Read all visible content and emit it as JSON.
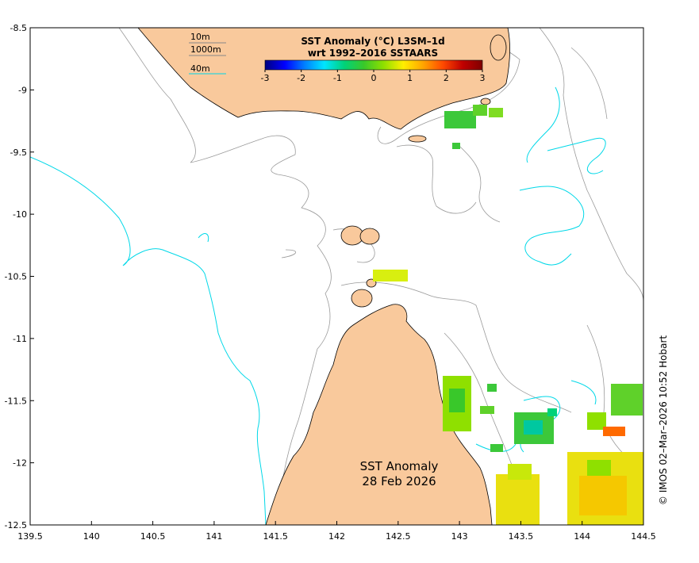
{
  "map": {
    "title_line1": "SST Anomaly",
    "title_line2": "28 Feb 2026",
    "credit": "© IMOS 02–Mar–2026 10:52 Hobart",
    "land_color": "#f9c99c",
    "ocean_color": "#ffffff",
    "contour_colors": {
      "10m": "#888888",
      "1000m": "#888888",
      "40m": "#00d8e8"
    }
  },
  "axes": {
    "x_ticks": [
      "139.5",
      "140",
      "140.5",
      "141",
      "141.5",
      "142",
      "142.5",
      "143",
      "143.5",
      "144",
      "144.5"
    ],
    "y_ticks": [
      "-8.5",
      "-9",
      "-9.5",
      "-10",
      "-10.5",
      "-11",
      "-11.5",
      "-12",
      "-12.5"
    ],
    "xlim": [
      139.5,
      144.5
    ],
    "ylim": [
      -12.5,
      -8.5
    ]
  },
  "legend": {
    "items": [
      {
        "label": "10m",
        "color": "#888888"
      },
      {
        "label": "1000m",
        "color": "#888888"
      },
      {
        "label": "40m",
        "color": "#00d8e8"
      }
    ]
  },
  "colorbar": {
    "title_line1": "SST Anomaly (°C) L3SM–1d",
    "title_line2": "wrt 1992–2016 SSTAARS",
    "ticks": [
      "-3",
      "-2",
      "-1",
      "0",
      "1",
      "2",
      "3"
    ],
    "range": [
      -3,
      3
    ],
    "colors": [
      "#00007f",
      "#0000ff",
      "#007fff",
      "#00e5ff",
      "#00d27a",
      "#39c82a",
      "#8fe000",
      "#ffee00",
      "#ffa500",
      "#ff4a00",
      "#c00000",
      "#7f0000"
    ]
  }
}
